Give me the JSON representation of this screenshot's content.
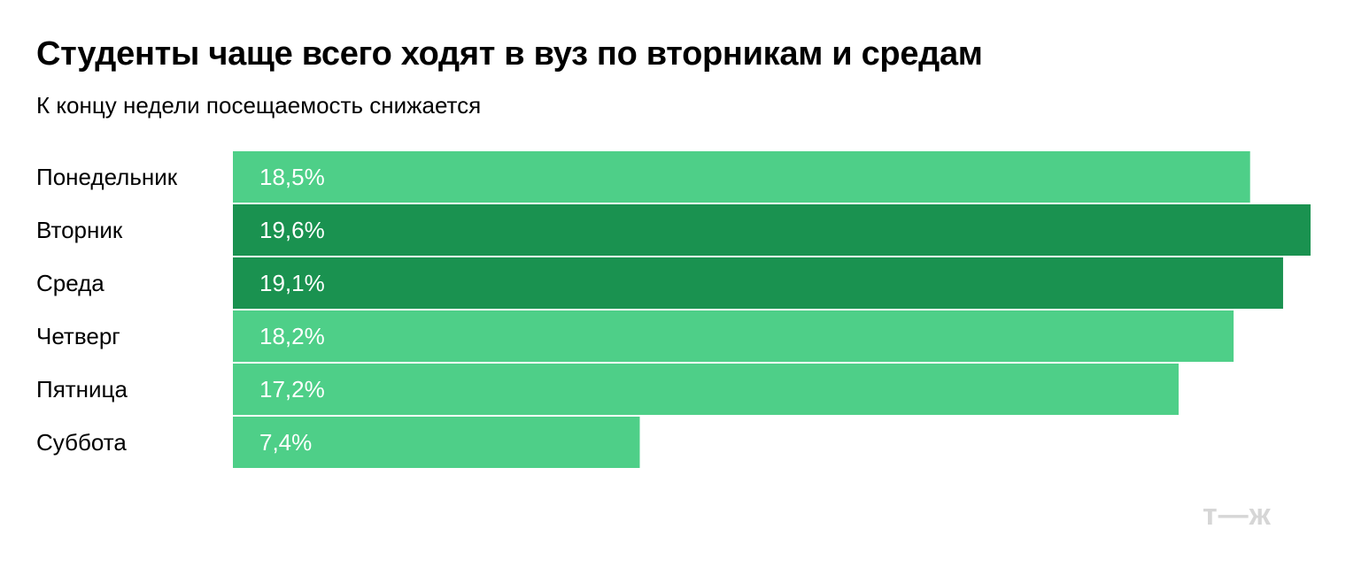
{
  "header": {
    "title": "Студенты чаще всего ходят в вуз по вторникам и средам",
    "subtitle": "К концу недели посещаемость снижается"
  },
  "chart_data": {
    "type": "bar",
    "orientation": "horizontal",
    "categories": [
      "Понедельник",
      "Вторник",
      "Среда",
      "Четверг",
      "Пятница",
      "Суббота"
    ],
    "values": [
      18.5,
      19.6,
      19.1,
      18.2,
      17.2,
      7.4
    ],
    "value_labels": [
      "18,5%",
      "19,6%",
      "19,1%",
      "18,2%",
      "17,2%",
      "7,4%"
    ],
    "highlighted": [
      false,
      true,
      true,
      false,
      false,
      false
    ],
    "title": "Студенты чаще всего ходят в вуз по вторникам и средам",
    "subtitle": "К концу недели посещаемость снижается",
    "xlabel": "",
    "ylabel": "",
    "xlim": [
      0,
      19.6
    ],
    "grid": false,
    "legend": "none"
  },
  "colors": {
    "bar": "#4ecf88",
    "bar_highlight": "#1a9250",
    "value_label": "#ffffff",
    "category_label": "#000000",
    "logo": "#d6d6d6"
  },
  "branding": {
    "logo_text": "т—ж"
  }
}
